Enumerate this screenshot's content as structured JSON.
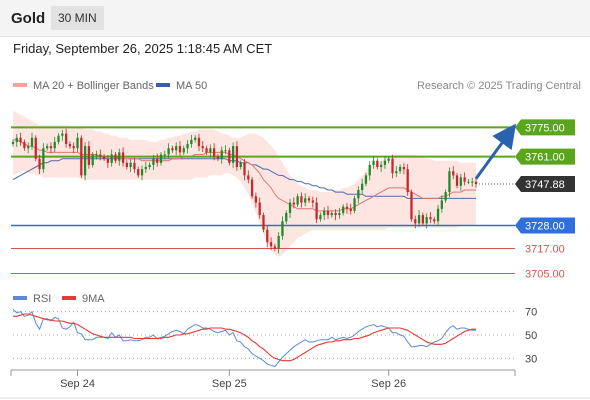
{
  "header": {
    "instrument": "Gold",
    "interval": "30 MIN",
    "timestamp": "Friday, September 26, 2025 1:18:45 AM CET",
    "credit": "Research © 2025 Trading Central"
  },
  "colors": {
    "up": "#1e8a2a",
    "down": "#c62828",
    "resistance": "#5aa51b",
    "support": "#2f6fdc",
    "minor_support": "#d9534f",
    "ma20": "#e57373",
    "ma50": "#3b5ca8",
    "band": "#fde0dc",
    "rsi": "#5b8bd6",
    "rsi_ma": "#e53935",
    "arrow": "#2a62b0",
    "current": "#333333"
  },
  "chart_data": [
    {
      "type": "candlestick",
      "legend": [
        "MA 20 + Bollinger Bands",
        "MA 50"
      ],
      "x_ticks": [
        "Sep 24",
        "Sep 25",
        "Sep 26"
      ],
      "ylim": [
        3700,
        3790
      ],
      "levels": [
        {
          "value": 3775.0,
          "label": "3775.00",
          "kind": "resistance"
        },
        {
          "value": 3761.0,
          "label": "3761.00",
          "kind": "resistance"
        },
        {
          "value": 3747.88,
          "label": "3747.88",
          "kind": "current"
        },
        {
          "value": 3728.0,
          "label": "3728.00",
          "kind": "support"
        },
        {
          "value": 3717.0,
          "label": "3717.00",
          "kind": "minor_support"
        },
        {
          "value": 3705.0,
          "label": "3705.00",
          "kind": "minor_support"
        }
      ],
      "close": [
        3768,
        3770,
        3768,
        3765,
        3766,
        3770,
        3760,
        3755,
        3765,
        3766,
        3765,
        3768,
        3771,
        3772,
        3767,
        3766,
        3765,
        3770,
        3752,
        3766,
        3757,
        3762,
        3762,
        3761,
        3760,
        3758,
        3762,
        3759,
        3763,
        3758,
        3756,
        3758,
        3755,
        3752,
        3755,
        3756,
        3757,
        3760,
        3758,
        3762,
        3762,
        3765,
        3764,
        3766,
        3763,
        3765,
        3767,
        3769,
        3770,
        3766,
        3765,
        3763,
        3765,
        3761,
        3760,
        3764,
        3764,
        3758,
        3766,
        3756,
        3758,
        3752,
        3750,
        3742,
        3739,
        3733,
        3726,
        3720,
        3718,
        3717,
        3723,
        3730,
        3734,
        3739,
        3738,
        3742,
        3739,
        3741,
        3740,
        3739,
        3731,
        3733,
        3735,
        3733,
        3734,
        3733,
        3734,
        3737,
        3736,
        3735,
        3741,
        3745,
        3748,
        3752,
        3757,
        3759,
        3756,
        3757,
        3759,
        3760,
        3753,
        3754,
        3756,
        3755,
        3744,
        3731,
        3729,
        3733,
        3729,
        3732,
        3731,
        3730,
        3736,
        3740,
        3744,
        3754,
        3752,
        3747,
        3751,
        3749,
        3749,
        3749,
        3747.88
      ],
      "overlay": {
        "ma20": [
          3769,
          3769,
          3768,
          3767,
          3766,
          3766,
          3765,
          3764,
          3764,
          3763,
          3763,
          3763,
          3763,
          3763,
          3763,
          3763,
          3763,
          3763,
          3762,
          3762,
          3762,
          3762,
          3762,
          3761,
          3761,
          3761,
          3761,
          3761,
          3760,
          3760,
          3760,
          3760,
          3760,
          3760,
          3759,
          3759,
          3759,
          3759,
          3759,
          3759,
          3759,
          3759,
          3760,
          3760,
          3760,
          3761,
          3761,
          3761,
          3762,
          3762,
          3762,
          3763,
          3763,
          3763,
          3763,
          3763,
          3763,
          3762,
          3762,
          3761,
          3760,
          3759,
          3758,
          3757,
          3755,
          3753,
          3750,
          3748,
          3746,
          3743,
          3741,
          3740,
          3739,
          3738,
          3737,
          3736,
          3736,
          3736,
          3736,
          3736,
          3735,
          3735,
          3735,
          3735,
          3735,
          3735,
          3735,
          3736,
          3736,
          3736,
          3737,
          3738,
          3739,
          3740,
          3741,
          3742,
          3743,
          3744,
          3745,
          3746,
          3746,
          3746,
          3746,
          3746,
          3745,
          3744,
          3743,
          3742,
          3741,
          3741,
          3741,
          3741,
          3741,
          3742,
          3742,
          3743,
          3744,
          3744,
          3744,
          3745,
          3745,
          3745,
          3745
        ],
        "ma50": [
          3750,
          3751,
          3752,
          3753,
          3754,
          3755,
          3756,
          3757,
          3758,
          3758,
          3759,
          3759,
          3759,
          3760,
          3760,
          3760,
          3760,
          3760,
          3760,
          3760,
          3760,
          3760,
          3760,
          3760,
          3760,
          3760,
          3760,
          3760,
          3760,
          3760,
          3760,
          3760,
          3760,
          3760,
          3760,
          3760,
          3760,
          3760,
          3760,
          3760,
          3760,
          3760,
          3760,
          3760,
          3760,
          3760,
          3760,
          3760,
          3760,
          3760,
          3760,
          3760,
          3760,
          3760,
          3760,
          3760,
          3760,
          3759,
          3759,
          3759,
          3758,
          3758,
          3758,
          3757,
          3757,
          3756,
          3755,
          3755,
          3754,
          3753,
          3752,
          3752,
          3751,
          3750,
          3750,
          3749,
          3749,
          3748,
          3748,
          3747,
          3747,
          3746,
          3746,
          3745,
          3745,
          3744,
          3744,
          3744,
          3743,
          3743,
          3743,
          3743,
          3743,
          3742,
          3742,
          3742,
          3742,
          3742,
          3742,
          3742,
          3742,
          3742,
          3742,
          3742,
          3741,
          3741,
          3741,
          3741,
          3741,
          3741,
          3741,
          3741,
          3741,
          3741,
          3741,
          3741,
          3741,
          3741,
          3741,
          3741,
          3741,
          3741,
          3741
        ],
        "band_upper": [
          3783,
          3782,
          3781,
          3780,
          3779,
          3778,
          3777,
          3776,
          3776,
          3776,
          3776,
          3776,
          3776,
          3776,
          3776,
          3776,
          3775,
          3775,
          3775,
          3774,
          3774,
          3774,
          3773,
          3773,
          3772,
          3772,
          3771,
          3771,
          3770,
          3770,
          3770,
          3769,
          3769,
          3769,
          3769,
          3769,
          3768,
          3768,
          3768,
          3769,
          3769,
          3770,
          3770,
          3771,
          3771,
          3772,
          3772,
          3773,
          3773,
          3774,
          3774,
          3774,
          3774,
          3774,
          3773,
          3772,
          3772,
          3771,
          3770,
          3770,
          3770,
          3771,
          3772,
          3772,
          3772,
          3771,
          3770,
          3768,
          3766,
          3764,
          3761,
          3758,
          3755,
          3752,
          3750,
          3748,
          3747,
          3746,
          3745,
          3745,
          3745,
          3744,
          3744,
          3744,
          3744,
          3745,
          3745,
          3746,
          3746,
          3747,
          3748,
          3750,
          3752,
          3754,
          3756,
          3757,
          3758,
          3759,
          3760,
          3761,
          3762,
          3762,
          3762,
          3762,
          3762,
          3762,
          3762,
          3761,
          3761,
          3760,
          3760,
          3759,
          3759,
          3759,
          3759,
          3759,
          3759,
          3759,
          3758,
          3758,
          3758,
          3758,
          3758
        ],
        "band_lower": [
          3752,
          3753,
          3754,
          3754,
          3753,
          3753,
          3752,
          3752,
          3751,
          3751,
          3751,
          3751,
          3751,
          3751,
          3751,
          3751,
          3751,
          3751,
          3750,
          3750,
          3750,
          3750,
          3750,
          3750,
          3750,
          3750,
          3750,
          3750,
          3750,
          3750,
          3750,
          3750,
          3750,
          3750,
          3750,
          3750,
          3750,
          3750,
          3750,
          3750,
          3750,
          3750,
          3750,
          3750,
          3750,
          3750,
          3750,
          3750,
          3751,
          3751,
          3751,
          3751,
          3752,
          3752,
          3752,
          3752,
          3753,
          3753,
          3752,
          3751,
          3749,
          3746,
          3743,
          3739,
          3734,
          3729,
          3724,
          3720,
          3716,
          3714,
          3713,
          3714,
          3716,
          3718,
          3720,
          3722,
          3723,
          3724,
          3725,
          3726,
          3726,
          3726,
          3726,
          3726,
          3726,
          3726,
          3726,
          3726,
          3726,
          3726,
          3726,
          3726,
          3726,
          3726,
          3726,
          3726,
          3726,
          3726,
          3726,
          3727,
          3727,
          3727,
          3727,
          3727,
          3727,
          3727,
          3727,
          3727,
          3727,
          3727,
          3727,
          3727,
          3727,
          3727,
          3727,
          3727,
          3727,
          3727,
          3728,
          3728,
          3728,
          3728,
          3728
        ]
      },
      "projection": {
        "from": 3749,
        "to": 3775
      }
    },
    {
      "type": "line",
      "legend": [
        "RSI",
        "9MA"
      ],
      "ylim": [
        20,
        80
      ],
      "y_ticks": [
        30,
        50,
        70
      ],
      "series": [
        {
          "name": "RSI",
          "values": [
            72,
            69,
            70,
            66,
            67,
            70,
            60,
            55,
            64,
            64,
            62,
            65,
            64,
            56,
            55,
            57,
            61,
            52,
            51,
            46,
            46,
            46,
            48,
            48,
            48,
            47,
            52,
            48,
            50,
            45,
            45,
            46,
            45,
            45,
            46,
            48,
            48,
            50,
            47,
            48,
            49,
            51,
            53,
            54,
            53,
            51,
            55,
            57,
            59,
            58,
            56,
            56,
            55,
            53,
            52,
            53,
            54,
            50,
            52,
            45,
            44,
            40,
            38,
            34,
            32,
            30,
            28,
            25,
            24,
            23,
            27,
            31,
            34,
            37,
            40,
            42,
            44,
            46,
            44,
            44,
            45,
            46,
            46,
            46,
            48,
            46,
            47,
            48,
            47,
            48,
            50,
            53,
            55,
            57,
            58,
            59,
            57,
            58,
            57,
            56,
            52,
            52,
            50,
            49,
            44,
            40,
            40,
            41,
            41,
            40,
            42,
            44,
            45,
            47,
            52,
            56,
            58,
            55,
            56,
            56,
            55,
            54,
            54
          ]
        },
        {
          "name": "9MA",
          "values": [
            66,
            66,
            67,
            68,
            68,
            67,
            66,
            65,
            64,
            63,
            63,
            62,
            62,
            62,
            61,
            60,
            60,
            59,
            57,
            55,
            53,
            51,
            50,
            49,
            48,
            48,
            48,
            48,
            48,
            48,
            48,
            48,
            47,
            47,
            47,
            47,
            47,
            47,
            47,
            47,
            48,
            48,
            49,
            50,
            50,
            51,
            51,
            52,
            53,
            54,
            55,
            55,
            56,
            56,
            56,
            56,
            55,
            55,
            54,
            53,
            52,
            50,
            48,
            45,
            43,
            40,
            38,
            35,
            32,
            30,
            29,
            28,
            28,
            28,
            29,
            31,
            33,
            35,
            37,
            39,
            41,
            42,
            43,
            44,
            44,
            45,
            45,
            46,
            46,
            46,
            47,
            47,
            48,
            49,
            50,
            52,
            53,
            54,
            55,
            56,
            56,
            56,
            56,
            55,
            54,
            52,
            50,
            48,
            46,
            44,
            43,
            42,
            42,
            42,
            43,
            45,
            47,
            49,
            51,
            53,
            54,
            55,
            55
          ]
        }
      ]
    }
  ]
}
